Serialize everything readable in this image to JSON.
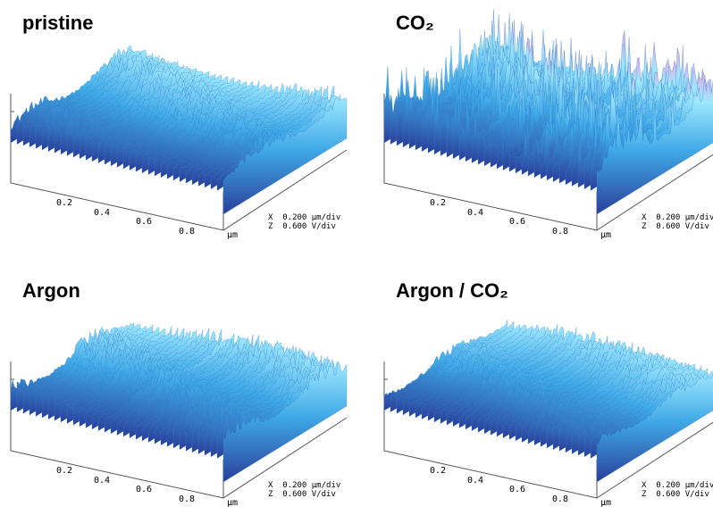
{
  "panels": [
    {
      "title": "pristine",
      "x_ticks": [
        "0.2",
        "0.4",
        "0.6",
        "0.8"
      ],
      "x_unit": "µm",
      "scale": [
        "X  0.200 µm/div",
        "Z  0.600 V/div"
      ]
    },
    {
      "title": "CO₂",
      "x_ticks": [
        "0.2",
        "0.4",
        "0.6",
        "0.8"
      ],
      "x_unit": "µm",
      "scale": [
        "X  0.200 µm/div",
        "Z  0.600 V/div"
      ]
    },
    {
      "title": "Argon",
      "x_ticks": [
        "0.2",
        "0.4",
        "0.6",
        "0.8"
      ],
      "x_unit": "µm",
      "scale": [
        "X  0.200 µm/div",
        "Z  0.600 V/div"
      ]
    },
    {
      "title": "Argon / CO₂",
      "x_ticks": [
        "0.2",
        "0.4",
        "0.6",
        "0.8"
      ],
      "x_unit": "µm",
      "scale": [
        "X  0.200 µm/div",
        "Z  0.600 V/div"
      ]
    }
  ]
}
